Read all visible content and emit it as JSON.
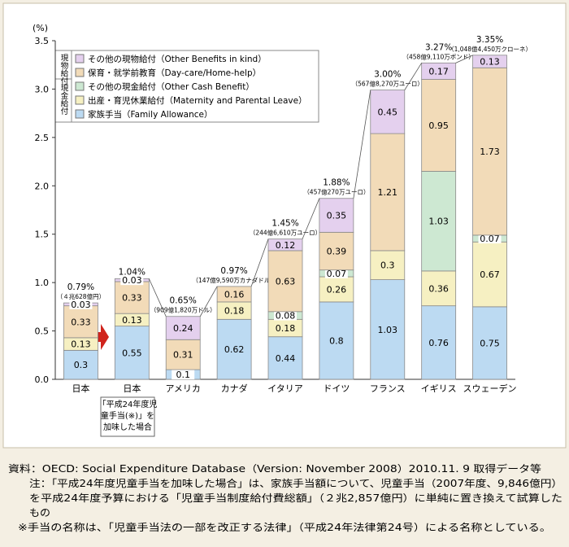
{
  "chart_data": {
    "type": "bar",
    "stacked": true,
    "y_unit": "(%)",
    "categories": [
      "日本",
      "日本",
      "アメリカ",
      "カナダ",
      "イタリア",
      "ドイツ",
      "フランス",
      "イギリス",
      "スウェーデン"
    ],
    "category_note": [
      "「平成24年度児",
      "童手当(※)」を",
      "加味した場合"
    ],
    "ylim": [
      0,
      3.5
    ],
    "yticks": [
      {
        "value": 0,
        "label": "0.0"
      },
      0.5,
      {
        "value": 1,
        "label": "1.0"
      },
      1.5,
      {
        "value": 2,
        "label": "2.0"
      },
      2.5,
      {
        "value": 3,
        "label": "3.0"
      },
      3.5
    ],
    "legend_groups": [
      "現物給付",
      "現金給付"
    ],
    "series": [
      {
        "name": "家族手当（Family Allowance）",
        "color": "#bcdaf2",
        "values": [
          0.3,
          0.55,
          0.1,
          0.62,
          0.44,
          0.8,
          1.03,
          0.76,
          0.75
        ]
      },
      {
        "name": "出産・育児休業給付（Maternity and Parental Leave）",
        "color": "#f6f0c2",
        "values": [
          0.13,
          0.13,
          null,
          0.18,
          0.18,
          0.26,
          0.3,
          0.36,
          0.67
        ]
      },
      {
        "name": "その他の現金給付（Other Cash Benefit）",
        "color": "#cde8d2",
        "values": [
          null,
          null,
          null,
          null,
          0.08,
          0.07,
          null,
          1.03,
          0.07
        ]
      },
      {
        "name": "保育・就学前教育（Day-care/Home-help）",
        "color": "#f2dbb8",
        "values": [
          0.33,
          0.33,
          0.31,
          0.16,
          0.63,
          0.39,
          1.21,
          0.95,
          1.73
        ]
      },
      {
        "name": "その他の現物給付（Other Benefits in kind）",
        "color": "#e4d0ee",
        "values": [
          0.03,
          0.03,
          0.24,
          null,
          0.12,
          0.35,
          0.45,
          0.17,
          0.13
        ]
      }
    ],
    "totals": [
      0.79,
      1.04,
      0.65,
      0.97,
      1.45,
      1.88,
      3.0,
      3.27,
      3.35
    ],
    "total_labels": [
      "0.79%",
      "1.04%",
      "0.65%",
      "0.97%",
      "1.45%",
      "1.88%",
      "3.00%",
      "3.27%",
      "3.35%"
    ],
    "amount_labels": [
      "（４兆628億円）",
      null,
      "（909億1,820万ドル）",
      "（147億9,590万カナダドル）",
      "（244億6,610万ユーロ）",
      "（457億270万ユーロ）",
      "（567億8,270万ユーロ）",
      "（458億9,110万ポンド）",
      "（1,048億4,450万クローネ）"
    ]
  },
  "footer": {
    "lines": [
      "資料：OECD: Social Expenditure Database（Version: November 2008）2010.11. 9 取得データ等",
      "注：「平成24年度児童手当を加味した場合」は、家族手当額について、児童手当（2007年度、9,846億円）",
      "を平成24年度予算における「児童手当制度給付費総額」（２兆2,857億円）に単純に置き換えて試算した",
      "もの",
      "※手当の名称は、「児童手当法の一部を改正する法律」（平成24年法律第24号）による名称としている。"
    ]
  }
}
